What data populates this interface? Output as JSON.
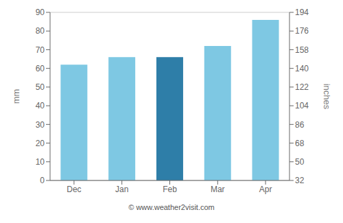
{
  "chart_data": {
    "type": "bar",
    "categories": [
      "Dec",
      "Jan",
      "Feb",
      "Mar",
      "Apr"
    ],
    "values": [
      62,
      66,
      66,
      72,
      86
    ],
    "colors": [
      "#7ec8e3",
      "#7ec8e3",
      "#2e7ea8",
      "#7ec8e3",
      "#7ec8e3"
    ],
    "ylabel": "mm",
    "y2label": "inches",
    "ylim": [
      0,
      90
    ],
    "yticks": [
      0,
      10,
      20,
      30,
      40,
      50,
      60,
      70,
      80,
      90
    ],
    "y2lim": [
      32,
      194
    ],
    "y2ticks": [
      32,
      50,
      68,
      86,
      104,
      122,
      140,
      158,
      176,
      194
    ],
    "grid": true,
    "annotations": [
      "© www.weather2visit.com"
    ]
  }
}
